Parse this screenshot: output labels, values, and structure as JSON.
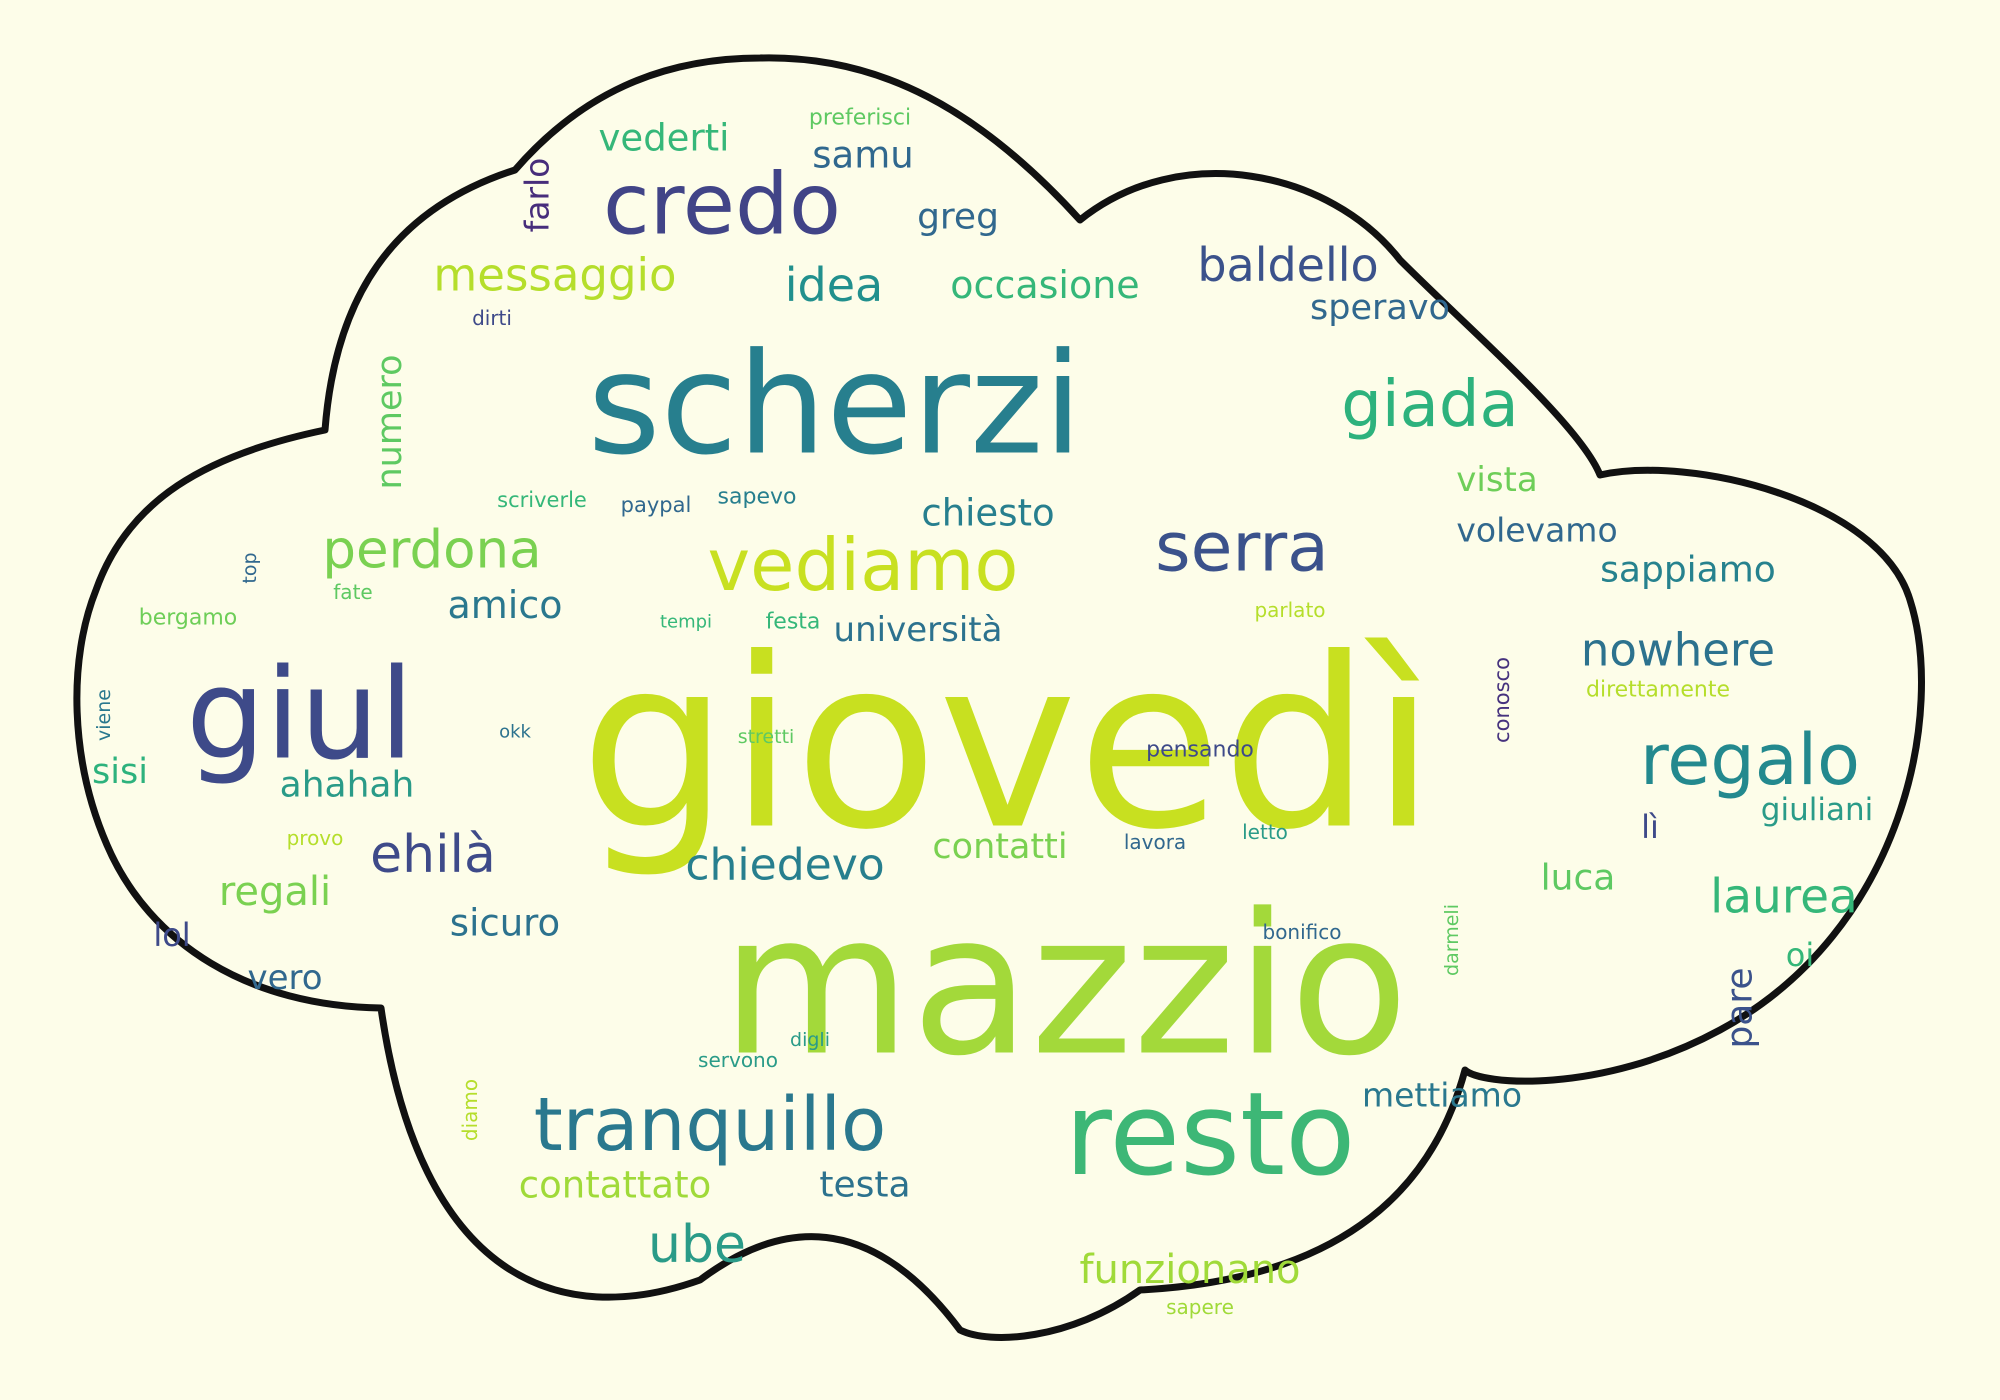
{
  "palette": {
    "background": "#fdfde9",
    "outline": "#111111",
    "text_colors": [
      "#46327e",
      "#3e4a89",
      "#31688e",
      "#277f8e",
      "#1f9e89",
      "#35b779",
      "#6ece58",
      "#b5de2b",
      "#c8e020"
    ]
  },
  "words": [
    {
      "text": "giovedì",
      "color": "#c8e020"
    },
    {
      "text": "mazzio",
      "color": "#a3d93a"
    },
    {
      "text": "scherzi",
      "color": "#277f8e"
    },
    {
      "text": "resto",
      "color": "#3db776"
    },
    {
      "text": "giul",
      "color": "#3e4a89"
    },
    {
      "text": "credo",
      "color": "#414487"
    },
    {
      "text": "vediamo",
      "color": "#c8e020"
    },
    {
      "text": "tranquillo",
      "color": "#2a788e"
    },
    {
      "text": "regalo",
      "color": "#23898e"
    },
    {
      "text": "serra",
      "color": "#3b528b"
    },
    {
      "text": "giada",
      "color": "#2db27d"
    },
    {
      "text": "perdona",
      "color": "#7ad151"
    },
    {
      "text": "messaggio",
      "color": "#b5de2b"
    },
    {
      "text": "chiedevo",
      "color": "#277f8e"
    },
    {
      "text": "nowhere",
      "color": "#2c728e"
    },
    {
      "text": "ehilà",
      "color": "#3e4a89"
    },
    {
      "text": "laurea",
      "color": "#35b779"
    },
    {
      "text": "baldello",
      "color": "#3b528b"
    },
    {
      "text": "funzionano",
      "color": "#a0da39"
    },
    {
      "text": "idea",
      "color": "#21908d"
    },
    {
      "text": "ube",
      "color": "#2a9b88"
    },
    {
      "text": "regali",
      "color": "#7ad151"
    },
    {
      "text": "occasione",
      "color": "#35b779"
    },
    {
      "text": "vederti",
      "color": "#35b779"
    },
    {
      "text": "samu",
      "color": "#30688e"
    },
    {
      "text": "greg",
      "color": "#31688e"
    },
    {
      "text": "farlo",
      "color": "#472d7b"
    },
    {
      "text": "speravo",
      "color": "#31688e"
    },
    {
      "text": "numero",
      "color": "#5ec962"
    },
    {
      "text": "chiesto",
      "color": "#277f8e"
    },
    {
      "text": "vista",
      "color": "#6ece58"
    },
    {
      "text": "volevamo",
      "color": "#31688e"
    },
    {
      "text": "sappiamo",
      "color": "#26828e"
    },
    {
      "text": "università",
      "color": "#2c728e"
    },
    {
      "text": "amico",
      "color": "#2a788e"
    },
    {
      "text": "contatti",
      "color": "#7ad151"
    },
    {
      "text": "ahahah",
      "color": "#2a9b88"
    },
    {
      "text": "sicuro",
      "color": "#2c728e"
    },
    {
      "text": "contattato",
      "color": "#a0da39"
    },
    {
      "text": "testa",
      "color": "#2c728e"
    },
    {
      "text": "mettiamo",
      "color": "#2a788e"
    },
    {
      "text": "luca",
      "color": "#5ec962"
    },
    {
      "text": "giuliani",
      "color": "#2a9b88"
    },
    {
      "text": "sisi",
      "color": "#2db27d"
    },
    {
      "text": "vero",
      "color": "#31688e"
    },
    {
      "text": "lol",
      "color": "#3e4a89"
    },
    {
      "text": "pare",
      "color": "#3b528b"
    },
    {
      "text": "oi",
      "color": "#35b779"
    },
    {
      "text": "lì",
      "color": "#3e4a89"
    },
    {
      "text": "preferisci",
      "color": "#5ec962"
    },
    {
      "text": "dirti",
      "color": "#3e4a89"
    },
    {
      "text": "scriverle",
      "color": "#35b779"
    },
    {
      "text": "paypal",
      "color": "#31688e"
    },
    {
      "text": "sapevo",
      "color": "#277f8e"
    },
    {
      "text": "top",
      "color": "#31688e"
    },
    {
      "text": "fate",
      "color": "#5ec962"
    },
    {
      "text": "bergamo",
      "color": "#6ece58"
    },
    {
      "text": "tempi",
      "color": "#35b779"
    },
    {
      "text": "festa",
      "color": "#35b779"
    },
    {
      "text": "parlato",
      "color": "#b5de2b"
    },
    {
      "text": "conosco",
      "color": "#46327e"
    },
    {
      "text": "direttamente",
      "color": "#b5de2b"
    },
    {
      "text": "viene",
      "color": "#2a788e"
    },
    {
      "text": "okk",
      "color": "#2c728e"
    },
    {
      "text": "stretti",
      "color": "#5ec962"
    },
    {
      "text": "pensando",
      "color": "#3e4a89"
    },
    {
      "text": "provo",
      "color": "#b5de2b"
    },
    {
      "text": "lavora",
      "color": "#31688e"
    },
    {
      "text": "letto",
      "color": "#2a9b88"
    },
    {
      "text": "bonifico",
      "color": "#31688e"
    },
    {
      "text": "darmeli",
      "color": "#5ec962"
    },
    {
      "text": "digli",
      "color": "#2a9b88"
    },
    {
      "text": "servono",
      "color": "#2a9b88"
    },
    {
      "text": "diamo",
      "color": "#b5de2b"
    },
    {
      "text": "sapere",
      "color": "#a0da39"
    }
  ]
}
